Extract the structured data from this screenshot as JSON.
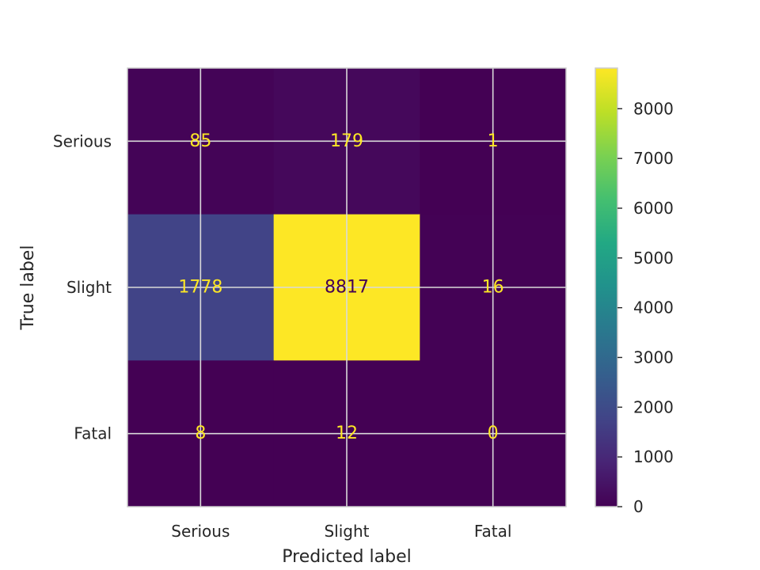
{
  "chart_data": {
    "type": "heatmap",
    "title": "",
    "xlabel": "Predicted label",
    "ylabel": "True label",
    "x_categories": [
      "Serious",
      "Slight",
      "Fatal"
    ],
    "y_categories": [
      "Serious",
      "Slight",
      "Fatal"
    ],
    "values": [
      [
        85,
        179,
        1
      ],
      [
        1778,
        8817,
        16
      ],
      [
        8,
        12,
        0
      ]
    ],
    "colormap": "viridis",
    "color_range": [
      0,
      8817
    ],
    "colorbar_ticks": [
      0,
      1000,
      2000,
      3000,
      4000,
      5000,
      6000,
      7000,
      8000
    ],
    "grid": true,
    "text_color_low": "#fde725",
    "text_color_high": "#440154"
  }
}
